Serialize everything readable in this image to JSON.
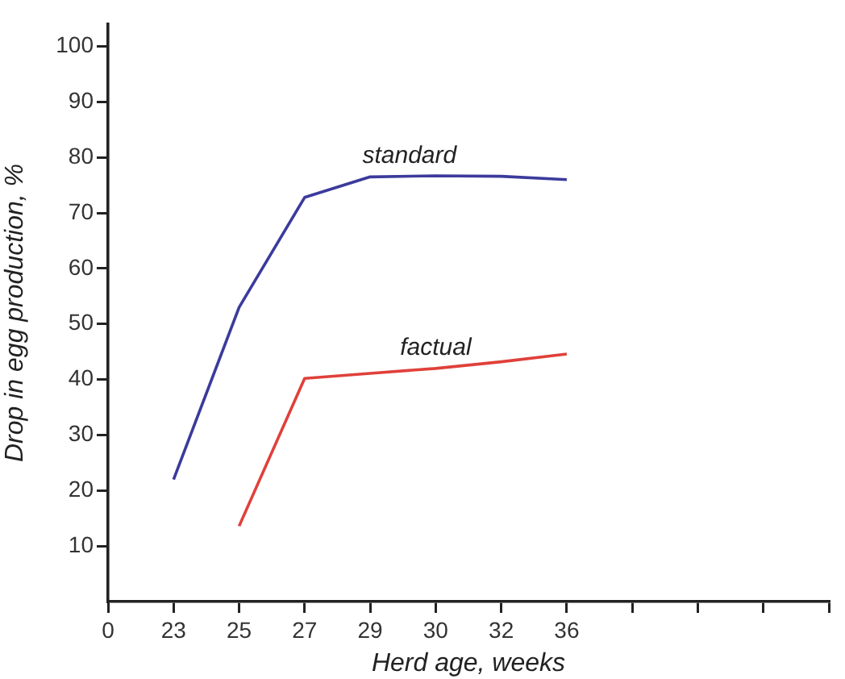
{
  "chart_data": {
    "type": "line",
    "xlabel": "Herd age, weeks",
    "ylabel": "Drop in egg production, %",
    "categories": [
      "0",
      "23",
      "25",
      "27",
      "29",
      "30",
      "32",
      "36",
      null,
      null,
      null,
      null
    ],
    "ylim": [
      0,
      104
    ],
    "yticks": [
      10,
      20,
      30,
      40,
      50,
      60,
      70,
      80,
      90,
      100
    ],
    "grid": false,
    "legend": false,
    "marker": "none",
    "line_style": "solid",
    "series": [
      {
        "name": "standard",
        "color": "#3b3b9c",
        "values": [
          null,
          22,
          53,
          72.8,
          76.5,
          76.7,
          76.6,
          76,
          null,
          null,
          null,
          null
        ]
      },
      {
        "name": "factual",
        "color": "#e0403a",
        "values": [
          null,
          null,
          13.6,
          40.2,
          41.1,
          42,
          43.2,
          44.6,
          null,
          null,
          null,
          null
        ]
      }
    ]
  }
}
